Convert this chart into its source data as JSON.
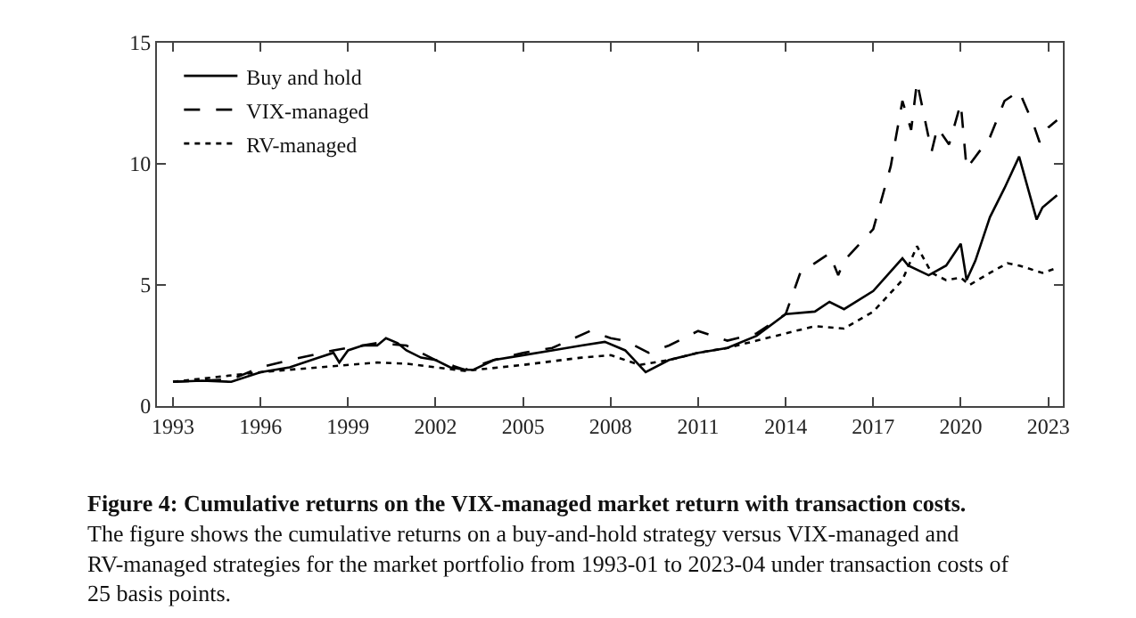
{
  "chart_data": {
    "type": "line",
    "title": "Figure 4: Cumulative returns on the VIX-managed market return with transaction costs.",
    "annotations": [
      "The figure shows the cumulative returns on a buy-and-hold strategy versus VIX-managed and RV-managed strategies for the market portfolio from 1993-01 to 2023-04 under transaction costs of 25 basis points."
    ],
    "xlim": [
      1992.45,
      2023.5
    ],
    "xticks": [
      1993,
      1996,
      1999,
      2002,
      2005,
      2008,
      2011,
      2014,
      2017,
      2020,
      2023
    ],
    "ylim": [
      0,
      15
    ],
    "yticks": [
      0,
      5,
      10,
      15
    ],
    "legend": "top left",
    "series": [
      {
        "name": "Buy and hold",
        "color": "#000000",
        "line_style": "solid",
        "x": [
          1993,
          1994,
          1995,
          1996,
          1997,
          1998,
          1998.5,
          1998.7,
          1999,
          1999.5,
          2000,
          2000.3,
          2000.7,
          2001,
          2001.5,
          2002,
          2002.5,
          2003,
          2003.3,
          2004,
          2005,
          2006,
          2007,
          2007.8,
          2008.5,
          2009.2,
          2010,
          2011,
          2012,
          2013,
          2014,
          2015,
          2015.5,
          2016,
          2017,
          2018,
          2018.2,
          2018.9,
          2019.5,
          2020,
          2020.2,
          2020.5,
          2021,
          2021.5,
          2022,
          2022.6,
          2022.8,
          2023,
          2023.3
        ],
        "values": [
          1.0,
          1.05,
          1.0,
          1.4,
          1.6,
          2.0,
          2.2,
          1.8,
          2.3,
          2.5,
          2.5,
          2.8,
          2.6,
          2.3,
          2.0,
          1.9,
          1.6,
          1.5,
          1.5,
          1.9,
          2.1,
          2.3,
          2.5,
          2.65,
          2.3,
          1.4,
          1.9,
          2.2,
          2.4,
          2.9,
          3.8,
          3.9,
          4.3,
          4.0,
          4.75,
          6.1,
          5.8,
          5.4,
          5.8,
          6.7,
          5.2,
          6.0,
          7.8,
          9.0,
          10.3,
          7.7,
          8.2,
          8.4,
          8.7
        ]
      },
      {
        "name": "VIX-managed",
        "color": "#000000",
        "line_style": "dashed",
        "x": [
          1993,
          1995,
          1996,
          1997,
          1998.5,
          1999,
          2000,
          2001,
          2002,
          2003,
          2004,
          2005,
          2006,
          2007.3,
          2008,
          2008.5,
          2009.3,
          2010,
          2011,
          2012,
          2013,
          2014,
          2014.5,
          2015.5,
          2015.8,
          2016,
          2017,
          2017.6,
          2018,
          2018.3,
          2018.5,
          2019,
          2019.2,
          2019.6,
          2020,
          2020.2,
          2021,
          2021.5,
          2022,
          2022.5,
          2022.7,
          2023,
          2023.3
        ],
        "values": [
          1.0,
          1.1,
          1.6,
          1.9,
          2.3,
          2.4,
          2.6,
          2.5,
          1.9,
          1.5,
          1.9,
          2.2,
          2.4,
          3.1,
          2.8,
          2.7,
          2.2,
          2.5,
          3.1,
          2.7,
          3.0,
          3.8,
          5.5,
          6.3,
          5.4,
          6.0,
          7.3,
          9.9,
          12.6,
          11.4,
          13.4,
          10.5,
          11.5,
          10.8,
          12.5,
          9.8,
          11.1,
          12.6,
          13.0,
          11.6,
          10.9,
          11.5,
          11.8
        ]
      },
      {
        "name": "RV-managed",
        "color": "#000000",
        "line_style": "dotted",
        "x": [
          1993,
          1996,
          1998,
          2000,
          2001,
          2002,
          2003,
          2005,
          2007,
          2008,
          2009,
          2010,
          2011,
          2012,
          2013,
          2014,
          2015,
          2016,
          2017,
          2018,
          2018.5,
          2019,
          2019.5,
          2020,
          2020.3,
          2021,
          2021.6,
          2022,
          2022.8,
          2023.3
        ],
        "values": [
          1.0,
          1.4,
          1.6,
          1.8,
          1.75,
          1.6,
          1.45,
          1.7,
          2.0,
          2.1,
          1.7,
          1.9,
          2.2,
          2.4,
          2.7,
          3.0,
          3.3,
          3.2,
          3.9,
          5.2,
          6.6,
          5.5,
          5.2,
          5.3,
          5.0,
          5.5,
          5.9,
          5.8,
          5.5,
          5.7
        ]
      }
    ]
  }
}
